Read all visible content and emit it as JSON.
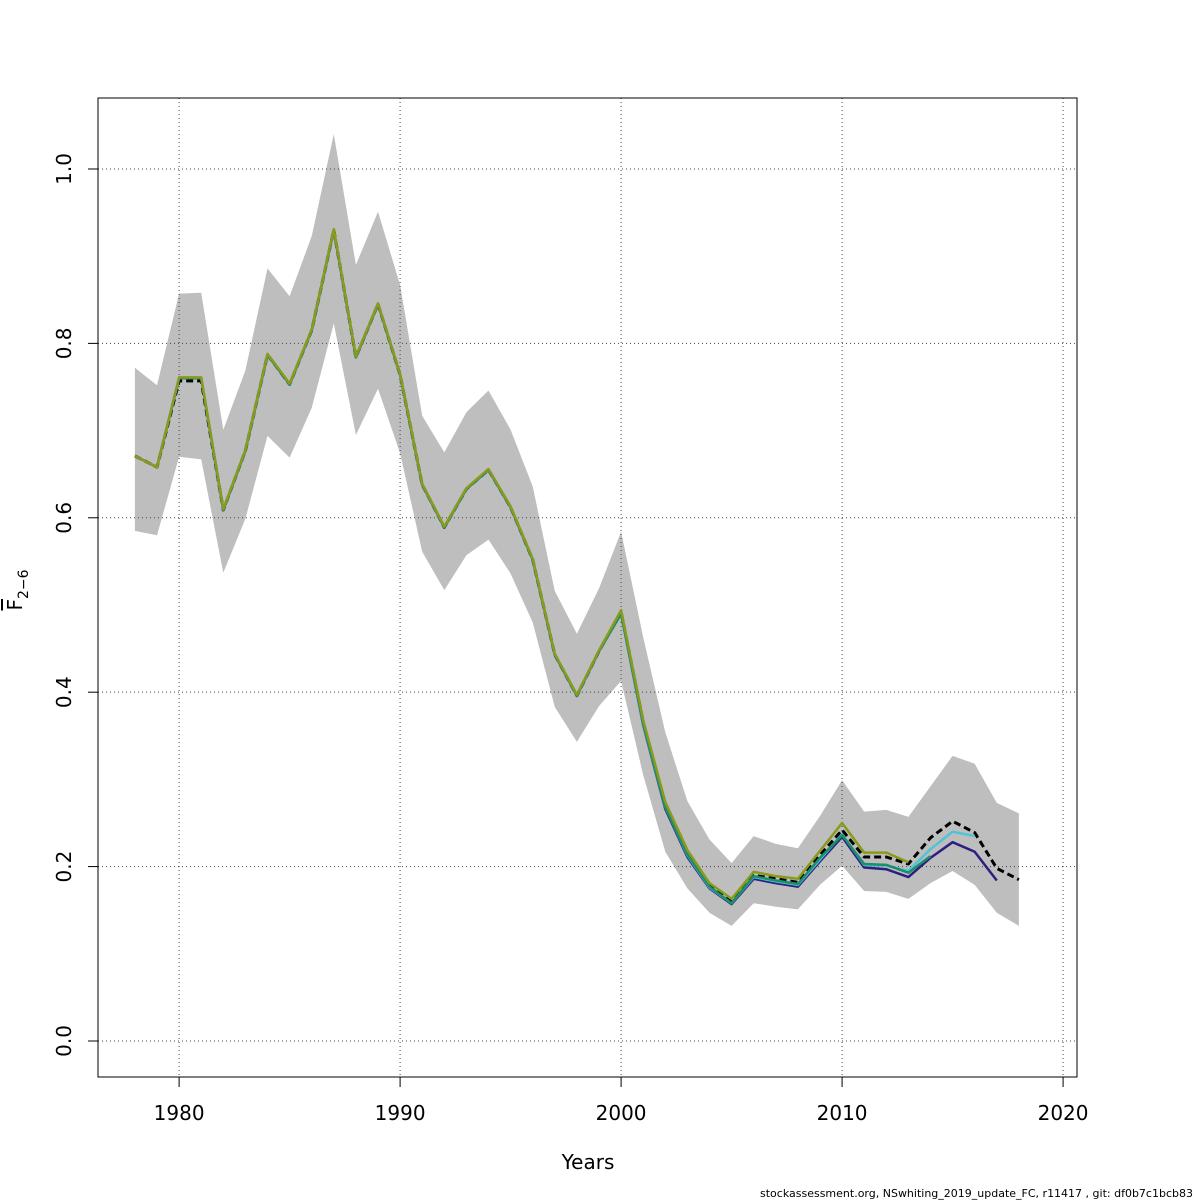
{
  "chart_data": {
    "type": "line",
    "xlabel": "Years",
    "ylabel_symbol": "F",
    "ylabel_subscript": "2−6",
    "footer": "stockassessment.org, NSwhiting_2019_update_FC, r11417 , git: df0b7c1bcb83",
    "x": [
      1978,
      1979,
      1980,
      1981,
      1982,
      1983,
      1984,
      1985,
      1986,
      1987,
      1988,
      1989,
      1990,
      1991,
      1992,
      1993,
      1994,
      1995,
      1996,
      1997,
      1998,
      1999,
      2000,
      2001,
      2002,
      2003,
      2004,
      2005,
      2006,
      2007,
      2008,
      2009,
      2010,
      2011,
      2012,
      2013,
      2014,
      2015,
      2016,
      2017,
      2018
    ],
    "band": {
      "color": "#bebebe",
      "upper": [
        0.772,
        0.752,
        0.857,
        0.858,
        0.701,
        0.769,
        0.886,
        0.854,
        0.923,
        1.04,
        0.89,
        0.951,
        0.867,
        0.717,
        0.675,
        0.721,
        0.746,
        0.701,
        0.636,
        0.516,
        0.467,
        0.519,
        0.584,
        0.463,
        0.354,
        0.275,
        0.231,
        0.204,
        0.235,
        0.226,
        0.221,
        0.258,
        0.299,
        0.263,
        0.265,
        0.257,
        0.292,
        0.327,
        0.318,
        0.273,
        0.261
      ],
      "lower": [
        0.585,
        0.58,
        0.67,
        0.667,
        0.537,
        0.599,
        0.694,
        0.669,
        0.726,
        0.823,
        0.695,
        0.748,
        0.674,
        0.561,
        0.517,
        0.557,
        0.575,
        0.536,
        0.48,
        0.383,
        0.343,
        0.384,
        0.413,
        0.305,
        0.217,
        0.175,
        0.147,
        0.132,
        0.158,
        0.154,
        0.151,
        0.179,
        0.201,
        0.172,
        0.171,
        0.163,
        0.181,
        0.195,
        0.179,
        0.147,
        0.132
      ]
    },
    "series": [
      {
        "color": "#000000",
        "dashed": true,
        "values": [
          0.671,
          0.658,
          0.757,
          0.757,
          0.609,
          0.677,
          0.787,
          0.753,
          0.815,
          0.93,
          0.784,
          0.845,
          0.764,
          0.638,
          0.589,
          0.633,
          0.655,
          0.612,
          0.552,
          0.443,
          0.396,
          0.447,
          0.492,
          0.366,
          0.271,
          0.216,
          0.179,
          0.161,
          0.19,
          0.186,
          0.182,
          0.213,
          0.242,
          0.211,
          0.211,
          0.203,
          0.233,
          0.252,
          0.239,
          0.198,
          0.185
        ]
      },
      {
        "color": "#2c1f80",
        "values": [
          0.671,
          0.658,
          0.76,
          0.76,
          0.609,
          0.677,
          0.787,
          0.753,
          0.815,
          0.93,
          0.784,
          0.845,
          0.764,
          0.638,
          0.589,
          0.633,
          0.655,
          0.612,
          0.552,
          0.443,
          0.396,
          0.447,
          0.49,
          0.362,
          0.266,
          0.211,
          0.175,
          0.157,
          0.186,
          0.181,
          0.177,
          0.206,
          0.234,
          0.199,
          0.197,
          0.188,
          0.21,
          0.228,
          0.217,
          0.184,
          null
        ]
      },
      {
        "color": "#4fc3d8",
        "values": [
          0.671,
          0.658,
          0.76,
          0.76,
          0.609,
          0.677,
          0.787,
          0.753,
          0.815,
          0.93,
          0.784,
          0.845,
          0.764,
          0.638,
          0.589,
          0.633,
          0.655,
          0.612,
          0.552,
          0.443,
          0.396,
          0.447,
          0.49,
          0.363,
          0.268,
          0.213,
          0.176,
          0.158,
          0.188,
          0.183,
          0.179,
          0.208,
          0.237,
          0.202,
          0.201,
          0.195,
          0.22,
          0.24,
          0.235,
          null,
          null
        ]
      },
      {
        "color": "#1a8f6a",
        "values": [
          0.671,
          0.658,
          0.76,
          0.76,
          0.609,
          0.677,
          0.787,
          0.753,
          0.815,
          0.93,
          0.784,
          0.845,
          0.764,
          0.638,
          0.589,
          0.633,
          0.655,
          0.612,
          0.552,
          0.443,
          0.396,
          0.447,
          0.49,
          0.364,
          0.268,
          0.214,
          0.177,
          0.158,
          0.189,
          0.184,
          0.18,
          0.21,
          0.236,
          0.203,
          0.202,
          0.193,
          0.212,
          null,
          null,
          null,
          null
        ]
      },
      {
        "color": "#8a9a1a",
        "values": [
          0.671,
          0.658,
          0.761,
          0.761,
          0.61,
          0.678,
          0.788,
          0.754,
          0.816,
          0.931,
          0.785,
          0.846,
          0.765,
          0.639,
          0.59,
          0.634,
          0.656,
          0.613,
          0.553,
          0.444,
          0.397,
          0.448,
          0.494,
          0.368,
          0.274,
          0.219,
          0.181,
          0.163,
          0.194,
          0.189,
          0.186,
          0.218,
          0.25,
          0.216,
          0.216,
          0.205,
          null,
          null,
          null,
          null,
          null
        ]
      }
    ],
    "xlim": [
      1976.33,
      2020.63
    ],
    "ylim": [
      -0.0413,
      1.0814
    ],
    "xticks": [
      1980,
      1990,
      2000,
      2010,
      2020
    ],
    "yticks": [
      {
        "value": 0,
        "label": "0.0"
      },
      0.2,
      0.4,
      0.6,
      0.8,
      {
        "value": 1,
        "label": "1.0"
      }
    ],
    "grid": true
  }
}
